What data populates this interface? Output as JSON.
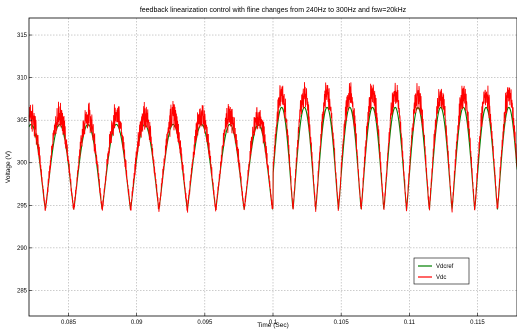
{
  "chart_data": {
    "type": "line",
    "title": "feedback linearization control with fline changes from 240Hz to 300Hz and fsw=20kHz",
    "xlabel": "Time (Sec)",
    "ylabel": "Voltage (V)",
    "xlim": [
      0.0821,
      0.1179
    ],
    "ylim": [
      282,
      317
    ],
    "xticks": [
      0.085,
      0.09,
      0.095,
      0.1,
      0.105,
      0.11,
      0.115
    ],
    "xtick_labels": [
      "0.085",
      "0.09",
      "0.095",
      "0.1",
      "0.105",
      "0.11",
      "0.115"
    ],
    "yticks": [
      285,
      290,
      295,
      300,
      305,
      310,
      315
    ],
    "ytick_labels": [
      "285",
      "290",
      "295",
      "300",
      "305",
      "310",
      "315"
    ],
    "grid": true,
    "legend_position": "bottom-right",
    "series": [
      {
        "name": "Vdcref",
        "color": "#007f00",
        "segments": [
          {
            "t_start": 0.0821,
            "t_end": 0.1,
            "frequency_hz": 480,
            "min": 294.5,
            "max": 304.5,
            "phase_ref_t": 0.0833
          },
          {
            "t_start": 0.1,
            "t_end": 0.1179,
            "frequency_hz": 600,
            "min": 294.5,
            "max": 306.5,
            "phase_ref_t": 0.0998
          }
        ]
      },
      {
        "name": "Vdc",
        "color": "#ff0000",
        "segments": [
          {
            "t_start": 0.0821,
            "t_end": 0.1,
            "frequency_hz": 480,
            "min": 294.5,
            "max": 305.5,
            "phase_ref_t": 0.0833
          },
          {
            "t_start": 0.1,
            "t_end": 0.1179,
            "frequency_hz": 600,
            "min": 294.5,
            "max": 308.0,
            "phase_ref_t": 0.0998
          }
        ]
      }
    ]
  }
}
